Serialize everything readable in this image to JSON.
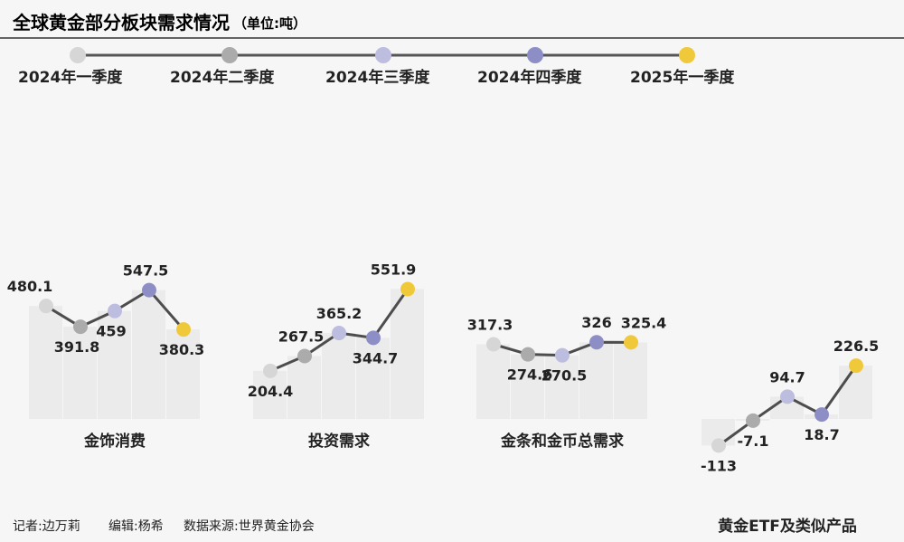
{
  "chart_data": {
    "type": "line",
    "title": "全球黄金部分板块需求情况",
    "unit": "（单位:吨）",
    "legend": [
      {
        "name": "2024年一季度",
        "color": "#d6d6d6"
      },
      {
        "name": "2024年二季度",
        "color": "#ababab"
      },
      {
        "name": "2024年三季度",
        "color": "#bdbde0"
      },
      {
        "name": "2024年四季度",
        "color": "#8e8ec7"
      },
      {
        "name": "2025年一季度",
        "color": "#f0c93a"
      }
    ],
    "panels": [
      {
        "name": "金饰消费",
        "values": [
          480.1,
          391.8,
          459,
          547.5,
          380.3
        ],
        "labels": [
          "480.1",
          "391.8",
          "459",
          "547.5",
          "380.3"
        ]
      },
      {
        "name": "投资需求",
        "values": [
          204.4,
          267.5,
          365.2,
          344.7,
          551.9
        ],
        "labels": [
          "204.4",
          "267.5",
          "365.2",
          "344.7",
          "551.9"
        ]
      },
      {
        "name": "金条和金币总需求",
        "values": [
          317.3,
          274.6,
          270.5,
          326,
          325.4
        ],
        "labels": [
          "317.3",
          "274.6",
          "270.5",
          "326",
          "325.4"
        ]
      },
      {
        "name": "黄金ETF及类似产品",
        "values": [
          -113,
          -7.1,
          94.7,
          18.7,
          226.5
        ],
        "labels": [
          "-113",
          "-7.1",
          "94.7",
          "18.7",
          "226.5"
        ]
      }
    ]
  },
  "footer": {
    "reporter": "记者:边万莉",
    "editor": "编辑:杨希",
    "source": "数据来源:世界黄金协会"
  }
}
